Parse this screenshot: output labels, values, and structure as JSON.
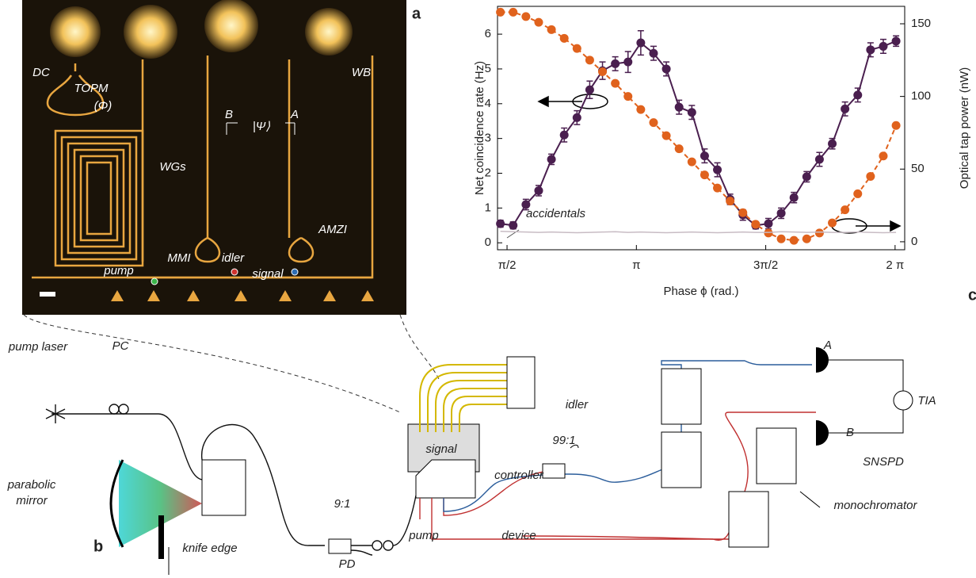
{
  "chart_data": {
    "type": "line",
    "x_label": "Phase ϕ (rad.)",
    "y_label": "Net coincidence rate (Hz)",
    "y2_label": "Optical tap power (nW)",
    "xlim": [
      1.455,
      6.4
    ],
    "xticks": [
      {
        "value": 1.5708,
        "label": "π/2"
      },
      {
        "value": 3.1416,
        "label": "π"
      },
      {
        "value": 4.7124,
        "label": "3π/2"
      },
      {
        "value": 6.2832,
        "label": "2 π"
      }
    ],
    "ylim": [
      -0.2,
      6.8
    ],
    "yticks": [
      0,
      1,
      2,
      3,
      4,
      5,
      6
    ],
    "y2lim": [
      -5.5,
      162
    ],
    "y2ticks": [
      0,
      50,
      100,
      150
    ],
    "x": [
      1.49,
      1.645,
      1.8,
      1.955,
      2.11,
      2.265,
      2.42,
      2.575,
      2.73,
      2.885,
      3.04,
      3.195,
      3.35,
      3.505,
      3.66,
      3.815,
      3.97,
      4.125,
      4.28,
      4.435,
      4.59,
      4.745,
      4.9,
      5.055,
      5.21,
      5.365,
      5.52,
      5.675,
      5.83,
      5.985,
      6.14,
      6.295
    ],
    "series": [
      {
        "color": "#4a1f4f",
        "values": [
          0.55,
          0.5,
          1.1,
          1.5,
          2.4,
          3.1,
          3.6,
          4.4,
          4.95,
          5.15,
          5.2,
          5.75,
          5.45,
          5.0,
          3.9,
          3.75,
          2.5,
          2.1,
          1.25,
          0.8,
          0.5,
          0.55,
          0.85,
          1.3,
          1.9,
          2.4,
          2.85,
          3.85,
          4.25,
          5.55,
          5.65,
          5.8
        ],
        "errors": [
          0.1,
          0.1,
          0.15,
          0.15,
          0.15,
          0.2,
          0.2,
          0.25,
          0.25,
          0.2,
          0.3,
          0.35,
          0.2,
          0.2,
          0.2,
          0.2,
          0.2,
          0.2,
          0.15,
          0.15,
          0.1,
          0.15,
          0.15,
          0.15,
          0.15,
          0.2,
          0.15,
          0.2,
          0.2,
          0.2,
          0.2,
          0.15
        ]
      },
      {
        "color": "#e0621d",
        "axis": "y2",
        "values": [
          158,
          158,
          155,
          151,
          146,
          140,
          133,
          125,
          117,
          109,
          100,
          91,
          82,
          73,
          64,
          55,
          46,
          37,
          28,
          20,
          12,
          6,
          2,
          1,
          2,
          6,
          13,
          22,
          33,
          45,
          59,
          80
        ]
      },
      {
        "name": "accidentals",
        "color": "#c8bcc4",
        "values": [
          0.33,
          0.32,
          0.31,
          0.3,
          0.31,
          0.3,
          0.29,
          0.3,
          0.31,
          0.32,
          0.3,
          0.31,
          0.3,
          0.29,
          0.3,
          0.31,
          0.3,
          0.29,
          0.3,
          0.31,
          0.3,
          0.3,
          0.32,
          0.31,
          0.3,
          0.31,
          0.3,
          0.3,
          0.31,
          0.3,
          0.29,
          0.3
        ]
      }
    ]
  },
  "panel_labels": [
    "a",
    "b",
    "c"
  ],
  "micrograph": {
    "labels": [
      "DC",
      "TOPM",
      "(Φ)",
      "B",
      "|Ψ⟩",
      "A",
      "WB",
      "WGs",
      "AMZI",
      "MMI",
      "pump",
      "idler",
      "signal"
    ]
  },
  "schematic": {
    "labels": [
      "pump laser",
      "PC",
      "parabolic",
      "mirror",
      "knife edge",
      "9:1",
      "PD",
      "pump",
      "device",
      "controller",
      "signal",
      "idler",
      "99:1",
      "A",
      "B",
      "TIA",
      "SNSPD",
      "monochromator"
    ]
  }
}
